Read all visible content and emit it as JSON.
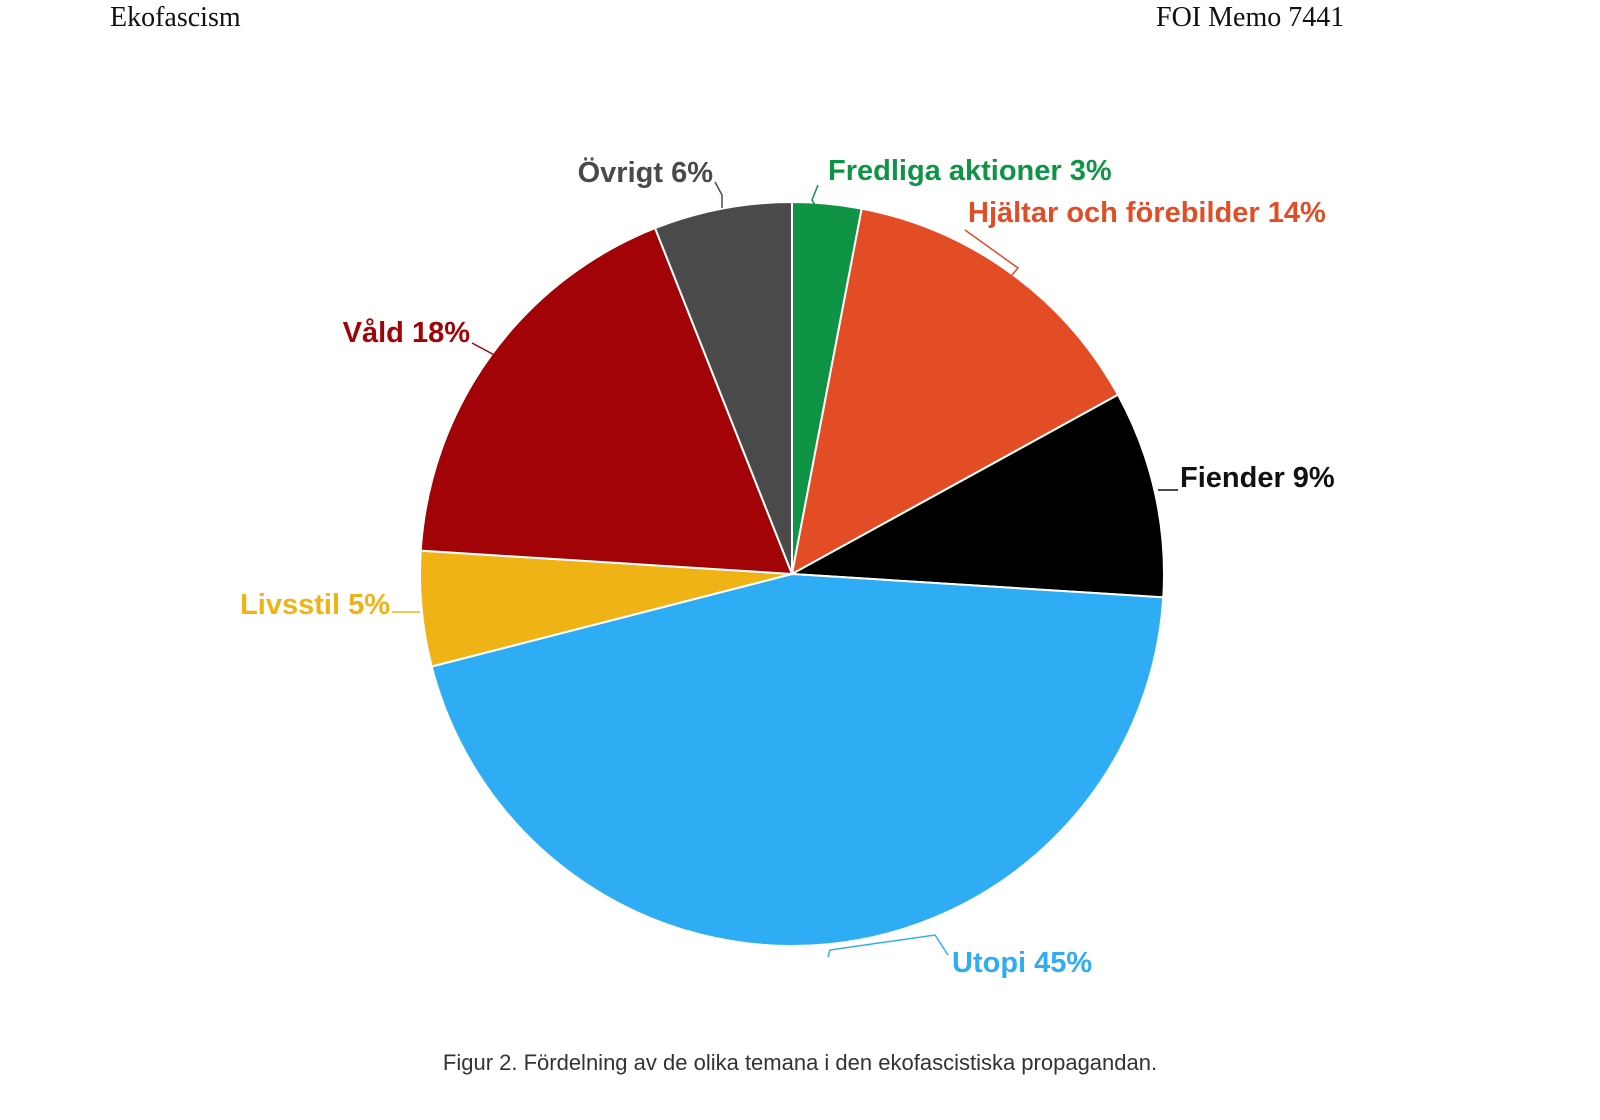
{
  "header": {
    "left": "Ekofascism",
    "right": "FOI Memo 7441"
  },
  "caption": "Figur 2. Fördelning av de olika temana i den ekofascistiska propagandan.",
  "chart_data": {
    "type": "pie",
    "start_angle_deg": 0,
    "direction": "clockwise",
    "slices": [
      {
        "label": "Fredliga aktioner 3%",
        "value": 3,
        "color": "#0f9446"
      },
      {
        "label": "Hjältar och förebilder 14%",
        "value": 14,
        "color": "#e34d25"
      },
      {
        "label": "Fiender 9%",
        "value": 9,
        "color": "#000000"
      },
      {
        "label": "Utopi 45%",
        "value": 45,
        "color": "#2fadf4"
      },
      {
        "label": "Livsstil 5%",
        "value": 5,
        "color": "#efb316"
      },
      {
        "label": "Våld 18%",
        "value": 18,
        "color": "#a10306"
      },
      {
        "label": "Övrigt 6%",
        "value": 6,
        "color": "#4a4a4a"
      }
    ],
    "label_colors": {
      "Fredliga aktioner 3%": "#0f9446",
      "Hjältar och förebilder 14%": "#e34d25",
      "Fiender 9%": "#111111",
      "Utopi 45%": "#2fadf4",
      "Livsstil 5%": "#efb316",
      "Våld 18%": "#a10306",
      "Övrigt 6%": "#4a4a4a"
    }
  }
}
